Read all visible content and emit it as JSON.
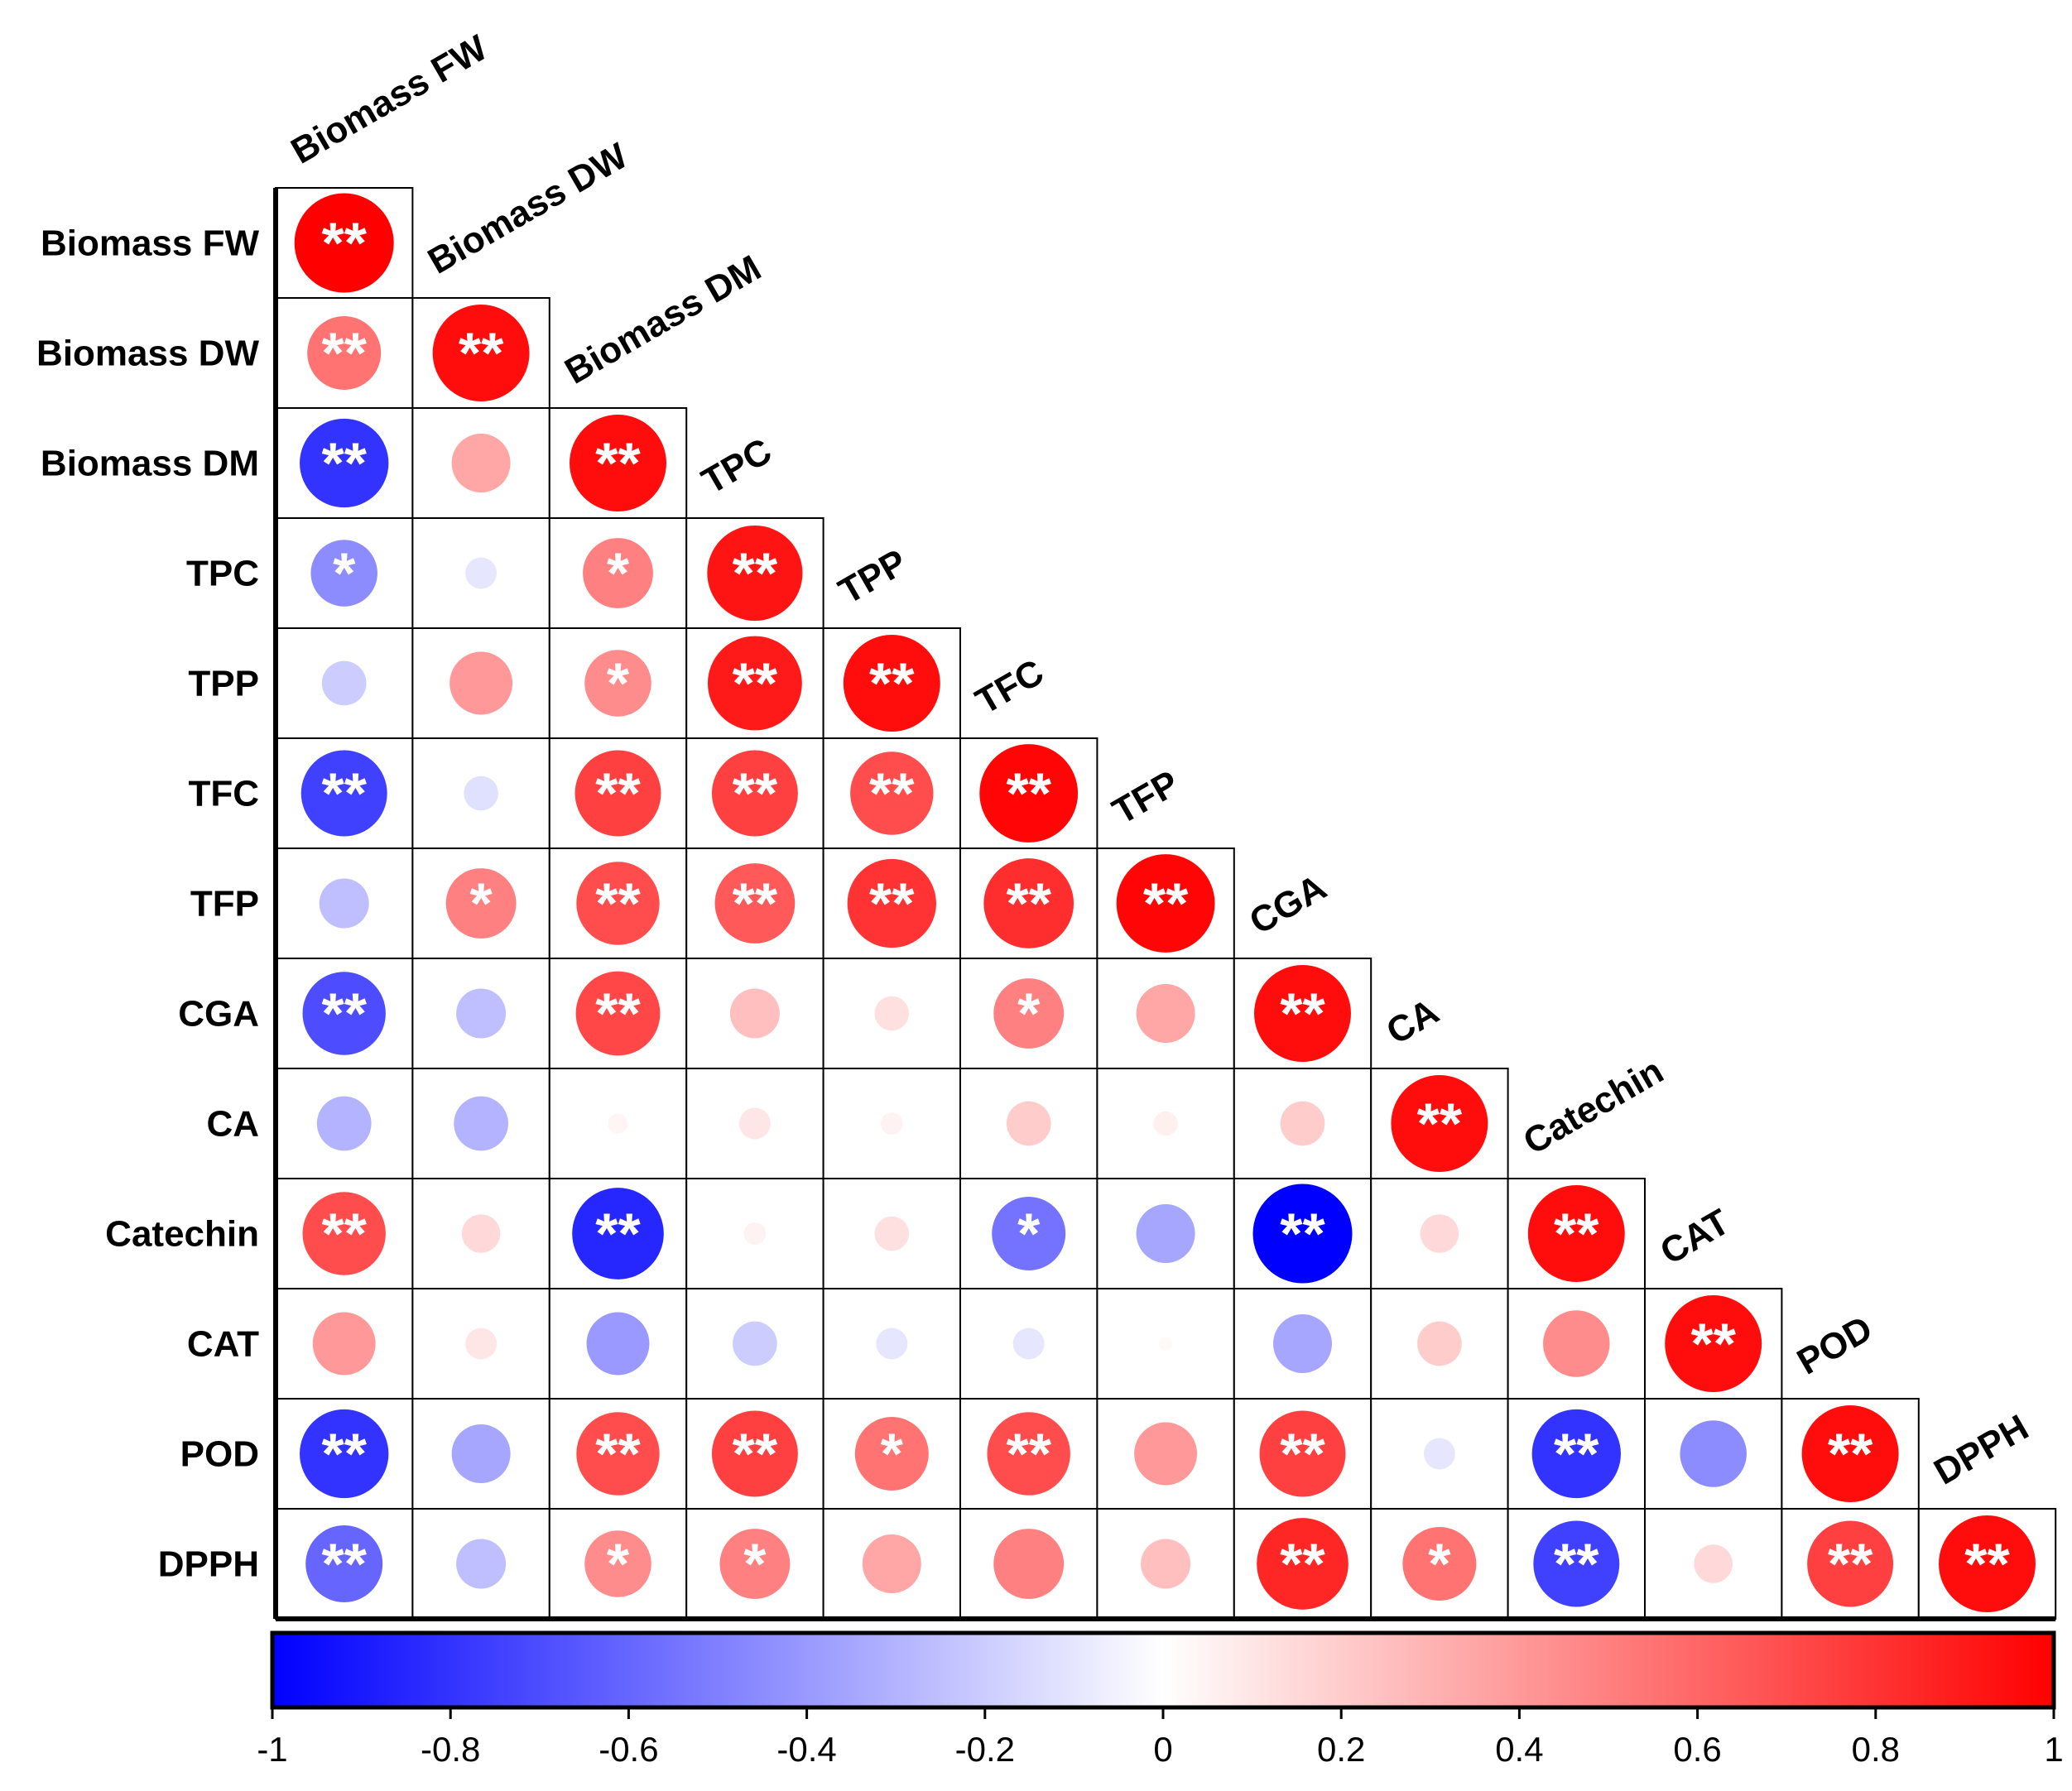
{
  "chart_data": {
    "type": "heatmap",
    "style": "lower-triangle correlation matrix with sized circles",
    "variables": [
      "Biomass FW",
      "Biomass DW",
      "Biomass DM",
      "TPC",
      "TPP",
      "TFC",
      "TFP",
      "CGA",
      "CA",
      "Catechin",
      "CAT",
      "POD",
      "DPPH"
    ],
    "matrix": [
      [
        1.0
      ],
      [
        0.55,
        0.95
      ],
      [
        -0.8,
        0.35,
        0.95
      ],
      [
        -0.45,
        -0.1,
        0.5,
        0.92
      ],
      [
        -0.2,
        0.4,
        0.45,
        0.9,
        0.95
      ],
      [
        -0.75,
        -0.12,
        0.75,
        0.75,
        0.7,
        0.98
      ],
      [
        -0.25,
        0.5,
        0.7,
        0.65,
        0.8,
        0.82,
        0.98
      ],
      [
        -0.7,
        -0.25,
        0.72,
        0.25,
        0.12,
        0.5,
        0.35,
        0.95
      ],
      [
        -0.3,
        -0.3,
        0.04,
        0.1,
        0.05,
        0.2,
        0.06,
        0.2,
        0.95
      ],
      [
        0.7,
        0.15,
        -0.85,
        0.05,
        0.12,
        -0.55,
        -0.35,
        -1.0,
        0.15,
        0.95
      ],
      [
        0.4,
        0.1,
        -0.4,
        -0.2,
        -0.1,
        -0.1,
        0.02,
        -0.35,
        0.2,
        0.45,
        0.95
      ],
      [
        -0.8,
        -0.35,
        0.7,
        0.75,
        0.55,
        0.7,
        0.4,
        0.75,
        -0.1,
        -0.8,
        -0.45,
        0.95
      ],
      [
        -0.6,
        -0.25,
        0.45,
        0.5,
        0.35,
        0.5,
        0.25,
        0.85,
        0.55,
        -0.75,
        0.15,
        0.75,
        0.95
      ]
    ],
    "significance": [
      [
        "**"
      ],
      [
        "**",
        "**"
      ],
      [
        "**",
        "",
        "**"
      ],
      [
        "*",
        "",
        "*",
        "**"
      ],
      [
        "",
        "",
        "*",
        "**",
        "**"
      ],
      [
        "**",
        "",
        "**",
        "**",
        "**",
        "**"
      ],
      [
        "",
        "*",
        "**",
        "**",
        "**",
        "**",
        "**"
      ],
      [
        "**",
        "",
        "**",
        "",
        "",
        "*",
        "",
        "**"
      ],
      [
        "",
        "",
        "",
        "",
        "",
        "",
        "",
        "",
        "**"
      ],
      [
        "**",
        "",
        "**",
        "",
        "",
        "*",
        "",
        "**",
        "",
        "**"
      ],
      [
        "",
        "",
        "",
        "",
        "",
        "",
        "",
        "",
        "",
        "",
        "**"
      ],
      [
        "**",
        "",
        "**",
        "**",
        "*",
        "**",
        "",
        "**",
        "",
        "**",
        "",
        "**"
      ],
      [
        "**",
        "",
        "*",
        "*",
        "",
        "",
        "",
        "**",
        "*",
        "**",
        "",
        "**",
        "**"
      ]
    ],
    "colorbar": {
      "range": [
        -1,
        1
      ],
      "colors": [
        "#0000ff",
        "#ffffff",
        "#ff0000"
      ],
      "tick_labels": [
        "-1",
        "-0.8",
        "-0.6",
        "-0.4",
        "-0.2",
        "0",
        "0.2",
        "0.4",
        "0.6",
        "0.8",
        "1"
      ],
      "tick_values": [
        -1,
        -0.8,
        -0.6,
        -0.4,
        -0.2,
        0,
        0.2,
        0.4,
        0.6,
        0.8,
        1
      ]
    }
  }
}
